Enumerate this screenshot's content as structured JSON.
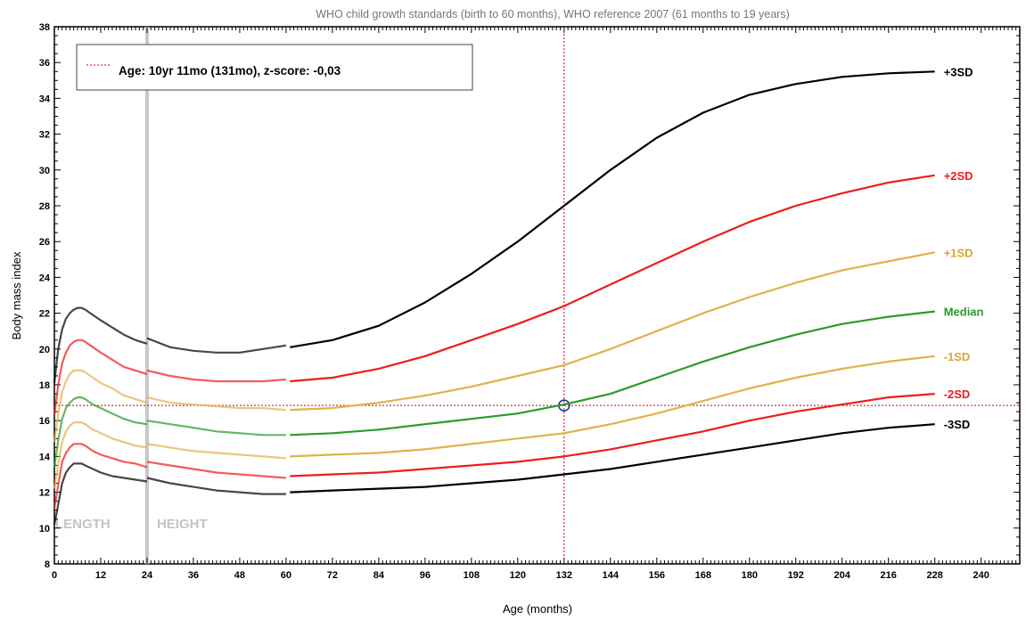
{
  "chart_data": {
    "type": "line",
    "title": "WHO child growth standards (birth to 60 months), WHO reference 2007 (61 months to 19 years)",
    "xlabel": "Age (months)",
    "ylabel": "Body mass index",
    "xlim": [
      0,
      250
    ],
    "ylim": [
      8,
      38
    ],
    "x_ticks": [
      0,
      12,
      24,
      36,
      48,
      60,
      72,
      84,
      96,
      108,
      120,
      132,
      144,
      156,
      168,
      180,
      192,
      204,
      216,
      228,
      240
    ],
    "y_ticks": [
      8,
      10,
      12,
      14,
      16,
      18,
      20,
      22,
      24,
      26,
      28,
      30,
      32,
      34,
      36,
      38
    ],
    "grid": false,
    "legend": {
      "position": "top-left",
      "text": "Age: 10yr 11mo (131mo), z-score: -0,03",
      "line_color": "#cc0000"
    },
    "regions": [
      {
        "label": "LENGTH",
        "from": 0,
        "to": 24
      },
      {
        "label": "HEIGHT",
        "from": 24,
        "to": 228
      }
    ],
    "divider_x": 24,
    "marker": {
      "x": 131,
      "y": 16.85
    },
    "series": [
      {
        "name": "+3SD",
        "color": "#000000",
        "segments": [
          {
            "x": [
              0,
              1,
              2,
              3,
              4,
              5,
              6,
              7,
              8,
              10,
              12,
              15,
              18,
              21,
              24
            ],
            "y": [
              18.1,
              20.0,
              21.1,
              21.7,
              22.0,
              22.2,
              22.3,
              22.3,
              22.2,
              21.9,
              21.6,
              21.2,
              20.8,
              20.5,
              20.3
            ]
          },
          {
            "x": [
              24,
              30,
              36,
              42,
              48,
              54,
              60
            ],
            "y": [
              20.6,
              20.1,
              19.9,
              19.8,
              19.8,
              20.0,
              20.2
            ]
          },
          {
            "x": [
              61,
              72,
              84,
              96,
              108,
              120,
              132,
              144,
              156,
              168,
              180,
              192,
              204,
              216,
              228
            ],
            "y": [
              20.1,
              20.5,
              21.3,
              22.6,
              24.2,
              26.0,
              28.0,
              30.0,
              31.8,
              33.2,
              34.2,
              34.8,
              35.2,
              35.4,
              35.5
            ]
          }
        ]
      },
      {
        "name": "+2SD",
        "color": "#ee1c1c",
        "segments": [
          {
            "x": [
              0,
              1,
              2,
              3,
              4,
              5,
              6,
              7,
              8,
              10,
              12,
              15,
              18,
              21,
              24
            ],
            "y": [
              16.3,
              18.0,
              19.2,
              19.8,
              20.2,
              20.4,
              20.5,
              20.5,
              20.4,
              20.1,
              19.8,
              19.4,
              19.0,
              18.8,
              18.6
            ]
          },
          {
            "x": [
              24,
              30,
              36,
              42,
              48,
              54,
              60
            ],
            "y": [
              18.8,
              18.5,
              18.3,
              18.2,
              18.2,
              18.2,
              18.3
            ]
          },
          {
            "x": [
              61,
              72,
              84,
              96,
              108,
              120,
              132,
              144,
              156,
              168,
              180,
              192,
              204,
              216,
              228
            ],
            "y": [
              18.2,
              18.4,
              18.9,
              19.6,
              20.5,
              21.4,
              22.4,
              23.6,
              24.8,
              26.0,
              27.1,
              28.0,
              28.7,
              29.3,
              29.7
            ]
          }
        ]
      },
      {
        "name": "+1SD",
        "color": "#e0b24a",
        "segments": [
          {
            "x": [
              0,
              1,
              2,
              3,
              4,
              5,
              6,
              7,
              8,
              10,
              12,
              15,
              18,
              21,
              24
            ],
            "y": [
              14.8,
              16.4,
              17.6,
              18.2,
              18.6,
              18.8,
              18.8,
              18.8,
              18.7,
              18.4,
              18.1,
              17.8,
              17.4,
              17.2,
              17.0
            ]
          },
          {
            "x": [
              24,
              30,
              36,
              42,
              48,
              54,
              60
            ],
            "y": [
              17.3,
              17.0,
              16.9,
              16.8,
              16.7,
              16.7,
              16.6
            ]
          },
          {
            "x": [
              61,
              72,
              84,
              96,
              108,
              120,
              132,
              144,
              156,
              168,
              180,
              192,
              204,
              216,
              228
            ],
            "y": [
              16.6,
              16.7,
              17.0,
              17.4,
              17.9,
              18.5,
              19.1,
              20.0,
              21.0,
              22.0,
              22.9,
              23.7,
              24.4,
              24.9,
              25.4
            ]
          }
        ]
      },
      {
        "name": "Median",
        "color": "#2a9a2a",
        "segments": [
          {
            "x": [
              0,
              1,
              2,
              3,
              4,
              5,
              6,
              7,
              8,
              10,
              12,
              15,
              18,
              21,
              24
            ],
            "y": [
              13.4,
              14.9,
              16.1,
              16.7,
              17.0,
              17.2,
              17.3,
              17.3,
              17.2,
              16.9,
              16.7,
              16.4,
              16.1,
              15.9,
              15.8
            ]
          },
          {
            "x": [
              24,
              30,
              36,
              42,
              48,
              54,
              60
            ],
            "y": [
              16.0,
              15.8,
              15.6,
              15.4,
              15.3,
              15.2,
              15.2
            ]
          },
          {
            "x": [
              61,
              72,
              84,
              96,
              108,
              120,
              132,
              144,
              156,
              168,
              180,
              192,
              204,
              216,
              228
            ],
            "y": [
              15.2,
              15.3,
              15.5,
              15.8,
              16.1,
              16.4,
              16.9,
              17.5,
              18.4,
              19.3,
              20.1,
              20.8,
              21.4,
              21.8,
              22.1
            ]
          }
        ]
      },
      {
        "name": "-1SD",
        "color": "#e0b24a",
        "segments": [
          {
            "x": [
              0,
              1,
              2,
              3,
              4,
              5,
              6,
              7,
              8,
              10,
              12,
              15,
              18,
              21,
              24
            ],
            "y": [
              12.2,
              13.6,
              14.8,
              15.4,
              15.7,
              15.9,
              15.9,
              15.9,
              15.8,
              15.5,
              15.3,
              15.0,
              14.8,
              14.6,
              14.5
            ]
          },
          {
            "x": [
              24,
              30,
              36,
              42,
              48,
              54,
              60
            ],
            "y": [
              14.7,
              14.5,
              14.3,
              14.2,
              14.1,
              14.0,
              13.9
            ]
          },
          {
            "x": [
              61,
              72,
              84,
              96,
              108,
              120,
              132,
              144,
              156,
              168,
              180,
              192,
              204,
              216,
              228
            ],
            "y": [
              14.0,
              14.1,
              14.2,
              14.4,
              14.7,
              15.0,
              15.3,
              15.8,
              16.4,
              17.1,
              17.8,
              18.4,
              18.9,
              19.3,
              19.6
            ]
          }
        ]
      },
      {
        "name": "-2SD",
        "color": "#ee1c1c",
        "segments": [
          {
            "x": [
              0,
              1,
              2,
              3,
              4,
              5,
              6,
              7,
              8,
              10,
              12,
              15,
              18,
              21,
              24
            ],
            "y": [
              11.1,
              12.4,
              13.7,
              14.2,
              14.5,
              14.7,
              14.7,
              14.7,
              14.6,
              14.3,
              14.1,
              13.9,
              13.7,
              13.6,
              13.4
            ]
          },
          {
            "x": [
              24,
              30,
              36,
              42,
              48,
              54,
              60
            ],
            "y": [
              13.7,
              13.5,
              13.3,
              13.1,
              13.0,
              12.9,
              12.8
            ]
          },
          {
            "x": [
              61,
              72,
              84,
              96,
              108,
              120,
              132,
              144,
              156,
              168,
              180,
              192,
              204,
              216,
              228
            ],
            "y": [
              12.9,
              13.0,
              13.1,
              13.3,
              13.5,
              13.7,
              14.0,
              14.4,
              14.9,
              15.4,
              16.0,
              16.5,
              16.9,
              17.3,
              17.5
            ]
          }
        ]
      },
      {
        "name": "-3SD",
        "color": "#000000",
        "segments": [
          {
            "x": [
              0,
              1,
              2,
              3,
              4,
              5,
              6,
              7,
              8,
              10,
              12,
              15,
              18,
              21,
              24
            ],
            "y": [
              10.2,
              11.3,
              12.5,
              13.1,
              13.4,
              13.6,
              13.6,
              13.6,
              13.5,
              13.3,
              13.1,
              12.9,
              12.8,
              12.7,
              12.6
            ]
          },
          {
            "x": [
              24,
              30,
              36,
              42,
              48,
              54,
              60
            ],
            "y": [
              12.8,
              12.5,
              12.3,
              12.1,
              12.0,
              11.9,
              11.9
            ]
          },
          {
            "x": [
              61,
              72,
              84,
              96,
              108,
              120,
              132,
              144,
              156,
              168,
              180,
              192,
              204,
              216,
              228
            ],
            "y": [
              12.0,
              12.1,
              12.2,
              12.3,
              12.5,
              12.7,
              13.0,
              13.3,
              13.7,
              14.1,
              14.5,
              14.9,
              15.3,
              15.6,
              15.8
            ]
          }
        ]
      }
    ]
  }
}
